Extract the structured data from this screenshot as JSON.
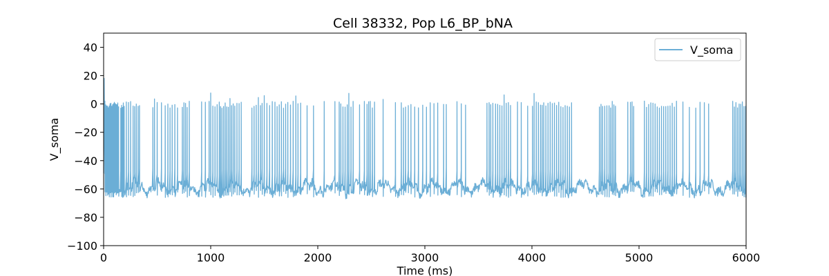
{
  "chart_data": {
    "type": "line",
    "title": "Cell 38332, Pop L6_BP_bNA",
    "xlabel": "Time (ms)",
    "ylabel": "V_soma",
    "xlim": [
      0,
      6000
    ],
    "ylim": [
      -100,
      50
    ],
    "x_ticks": [
      0,
      1000,
      2000,
      3000,
      4000,
      5000,
      6000
    ],
    "x_tick_labels": [
      "0",
      "1000",
      "2000",
      "3000",
      "4000",
      "5000",
      "6000"
    ],
    "y_ticks": [
      -100,
      -80,
      -60,
      -40,
      -20,
      0,
      20,
      40
    ],
    "y_tick_labels": [
      "−100",
      "−80",
      "−60",
      "−40",
      "−20",
      "0",
      "20",
      "40"
    ],
    "grid": false,
    "legend_position": "top-right",
    "series": [
      {
        "name": "V_soma",
        "color": "#6baed6",
        "resting_mV": -59,
        "spike_peak_mV": 2,
        "initial_peak": {
          "t": 5,
          "v": 18
        },
        "spike_times_ms": [
          12,
          20,
          28,
          36,
          44,
          52,
          60,
          68,
          76,
          84,
          92,
          100,
          108,
          116,
          124,
          132,
          140,
          150,
          160,
          168,
          176,
          184,
          192,
          202,
          212,
          222,
          232,
          242,
          252,
          262,
          275,
          290,
          305,
          322,
          335,
          445,
          460,
          475,
          500,
          540,
          575,
          600,
          620,
          640,
          665,
          690,
          712,
          735,
          750,
          765,
          780,
          800,
          915,
          950,
          985,
          1000,
          1010,
          1020,
          1030,
          1040,
          1050,
          1060,
          1070,
          1080,
          1092,
          1105,
          1120,
          1135,
          1150,
          1165,
          1180,
          1195,
          1210,
          1225,
          1245,
          1265,
          1285,
          1385,
          1395,
          1405,
          1415,
          1425,
          1435,
          1445,
          1455,
          1465,
          1480,
          1500,
          1525,
          1550,
          1575,
          1600,
          1620,
          1640,
          1660,
          1680,
          1700,
          1720,
          1745,
          1770,
          1795,
          1815,
          1840,
          1870,
          1900,
          1930,
          1960,
          1990,
          2010,
          2030,
          2060,
          2090,
          2130,
          2160,
          2200,
          2215,
          2225,
          2235,
          2245,
          2255,
          2265,
          2275,
          2290,
          2310,
          2330,
          2360,
          2390,
          2420,
          2435,
          2445,
          2460,
          2475,
          2490,
          2510,
          2530,
          2560,
          2610,
          2700,
          2725,
          2755,
          2780,
          2800,
          2820,
          2845,
          2870,
          2905,
          2940,
          2980,
          3015,
          3050,
          3085,
          3120,
          3150,
          3175,
          3200,
          3230,
          3270,
          3300,
          3340,
          3380,
          3430,
          3550,
          3580,
          3600,
          3615,
          3625,
          3635,
          3645,
          3660,
          3680,
          3700,
          3720,
          3740,
          3760,
          3780,
          3800,
          3830,
          3865,
          3900,
          3930,
          3960,
          3990,
          4005,
          4020,
          4040,
          4060,
          4080,
          4095,
          4110,
          4130,
          4150,
          4170,
          4190,
          4210,
          4230,
          4250,
          4270,
          4290,
          4310,
          4330,
          4350,
          4370,
          4630,
          4645,
          4660,
          4680,
          4700,
          4720,
          4735,
          4750,
          4765,
          4780,
          4810,
          4850,
          4895,
          4920,
          4935,
          4950,
          4980,
          5020,
          5050,
          5070,
          5090,
          5110,
          5130,
          5150,
          5170,
          5190,
          5210,
          5230,
          5250,
          5270,
          5290,
          5310,
          5330,
          5350,
          5380,
          5410,
          5440,
          5470,
          5500,
          5530,
          5570,
          5610,
          5650,
          5680,
          5700,
          5720,
          5740,
          5760,
          5780,
          5800,
          5820,
          5840,
          5860,
          5875,
          5890,
          5905,
          5920,
          5935,
          5950,
          5965,
          5980,
          5995
        ]
      }
    ]
  }
}
